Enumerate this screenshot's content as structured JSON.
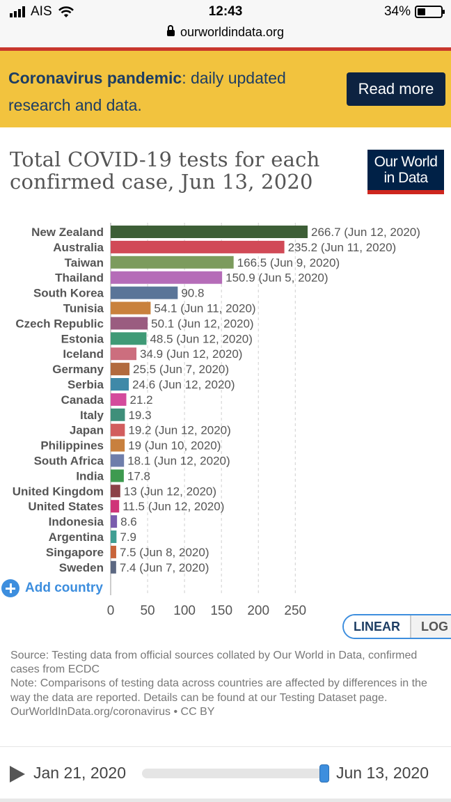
{
  "status": {
    "carrier": "AIS",
    "time": "12:43",
    "battery": "34%"
  },
  "url": "ourworldindata.org",
  "banner": {
    "bold": "Coronavirus pandemic",
    "rest": ": daily updated research and data.",
    "button": "Read more"
  },
  "logo": {
    "line1": "Our World",
    "line2": "in Data"
  },
  "title": "Total COVID-19 tests for each confirmed case, Jun 13, 2020",
  "chart_data": {
    "type": "bar",
    "orientation": "horizontal",
    "categories": [
      "New Zealand",
      "Australia",
      "Taiwan",
      "Thailand",
      "South Korea",
      "Tunisia",
      "Czech Republic",
      "Estonia",
      "Iceland",
      "Germany",
      "Serbia",
      "Canada",
      "Italy",
      "Japan",
      "Philippines",
      "South Africa",
      "India",
      "United Kingdom",
      "United States",
      "Indonesia",
      "Argentina",
      "Singapore",
      "Sweden"
    ],
    "values": [
      266.7,
      235.2,
      166.5,
      150.9,
      90.8,
      54.1,
      50.1,
      48.5,
      34.9,
      25.5,
      24.6,
      21.2,
      19.3,
      19.2,
      19,
      18.1,
      17.8,
      13,
      11.5,
      8.6,
      7.9,
      7.5,
      7.4
    ],
    "labels": [
      "266.7 (Jun 12, 2020)",
      "235.2 (Jun 11, 2020)",
      "166.5 (Jun 9, 2020)",
      "150.9 (Jun 5, 2020)",
      "90.8",
      "54.1 (Jun 11, 2020)",
      "50.1 (Jun 12, 2020)",
      "48.5 (Jun 12, 2020)",
      "34.9 (Jun 12, 2020)",
      "25.5 (Jun 7, 2020)",
      "24.6 (Jun 12, 2020)",
      "21.2",
      "19.3",
      "19.2 (Jun 12, 2020)",
      "19 (Jun 10, 2020)",
      "18.1 (Jun 12, 2020)",
      "17.8",
      "13 (Jun 12, 2020)",
      "11.5 (Jun 12, 2020)",
      "8.6",
      "7.9",
      "7.5 (Jun 8, 2020)",
      "7.4 (Jun 7, 2020)"
    ],
    "colors": [
      "#3d5e36",
      "#d14a57",
      "#7c9b5d",
      "#b56cb8",
      "#5a7598",
      "#c9813c",
      "#9a5c80",
      "#3f9a76",
      "#cc6e7e",
      "#b26a3e",
      "#3f89a8",
      "#d44b9c",
      "#3f8f7a",
      "#d25d5e",
      "#c8803e",
      "#6f7eab",
      "#3e9a4f",
      "#8c4147",
      "#cf3478",
      "#7a5cad",
      "#3f9e93",
      "#c9643a",
      "#5c6882"
    ],
    "xticks": [
      0,
      50,
      100,
      150,
      200,
      250
    ],
    "xlim": [
      0,
      266.7
    ],
    "grid": true,
    "xscale": "linear"
  },
  "add_country": "Add country",
  "scale_toggle": {
    "linear": "LINEAR",
    "log": "LOG"
  },
  "notes": {
    "source": "Source: Testing data from official sources collated by Our World in Data, confirmed cases from ECDC",
    "note": "Note: Comparisons of testing data across countries are affected by differences in the way the data are reported. Details can be found at our Testing Dataset page.",
    "credit": "OurWorldInData.org/coronavirus • CC BY"
  },
  "timeline": {
    "start": "Jan 21, 2020",
    "end": "Jun 13, 2020",
    "position": 1.0
  }
}
